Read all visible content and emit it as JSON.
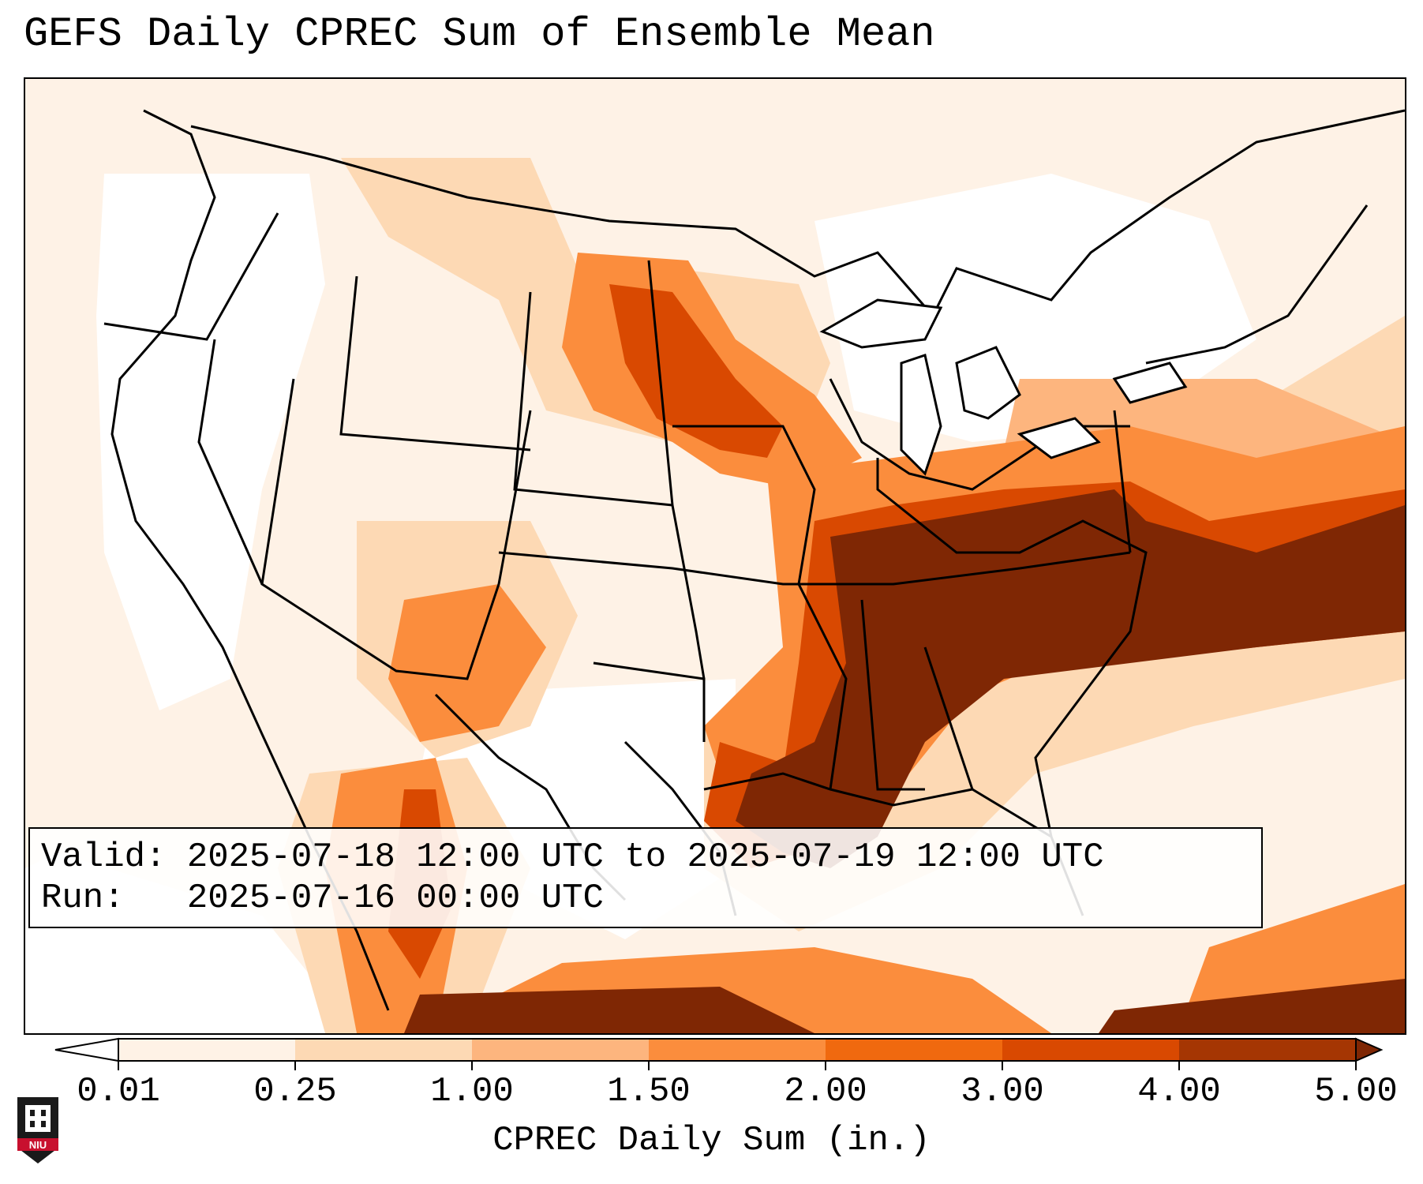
{
  "title": "GEFS Daily CPREC Sum of Ensemble Mean",
  "info": {
    "valid_line": "Valid: 2025-07-18 12:00 UTC to 2025-07-19 12:00 UTC",
    "run_line": "Run:   2025-07-16 00:00 UTC"
  },
  "colorbar": {
    "label": "CPREC Daily Sum (in.)",
    "ticks": [
      "0.01",
      "0.25",
      "1.00",
      "1.50",
      "2.00",
      "3.00",
      "4.00",
      "5.00"
    ],
    "colors": [
      "#fef2e6",
      "#fdd9b4",
      "#fdb57e",
      "#fb8d3d",
      "#f0690f",
      "#d94901",
      "#a53603"
    ],
    "under_color": "#ffffff",
    "over_color": "#7f2704",
    "extend": "both"
  },
  "logo": {
    "text": "NIU",
    "color": "#c8102e"
  }
}
